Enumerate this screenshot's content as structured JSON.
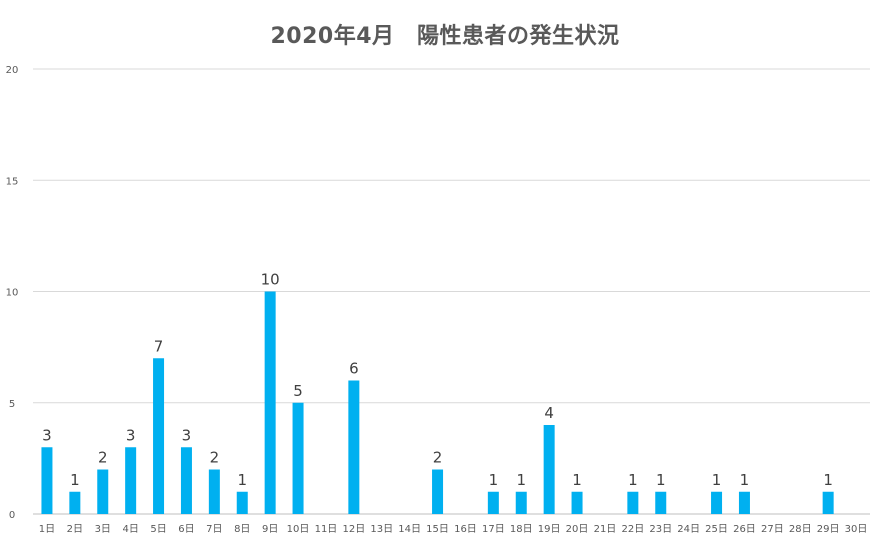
{
  "chart_data": {
    "type": "bar",
    "title": "2020年4月　陽性患者の発生状況",
    "xlabel": "",
    "ylabel": "",
    "ylim": [
      0,
      20
    ],
    "yticks": [
      0,
      5,
      10,
      15,
      20
    ],
    "grid": true,
    "legend": "none",
    "bar_color": "#00b0f0",
    "categories": [
      "1日",
      "2日",
      "3日",
      "4日",
      "5日",
      "6日",
      "7日",
      "8日",
      "9日",
      "10日",
      "11日",
      "12日",
      "13日",
      "14日",
      "15日",
      "16日",
      "17日",
      "18日",
      "19日",
      "20日",
      "21日",
      "22日",
      "23日",
      "24日",
      "25日",
      "26日",
      "27日",
      "28日",
      "29日",
      "30日"
    ],
    "values": [
      3,
      1,
      2,
      3,
      7,
      3,
      2,
      1,
      10,
      5,
      0,
      6,
      0,
      0,
      2,
      0,
      1,
      1,
      4,
      1,
      0,
      1,
      1,
      0,
      1,
      1,
      0,
      0,
      1,
      0
    ],
    "data_labels": [
      "3",
      "1",
      "2",
      "3",
      "7",
      "3",
      "2",
      "1",
      "10",
      "5",
      "",
      "6",
      "",
      "",
      "2",
      "",
      "1",
      "1",
      "4",
      "1",
      "",
      "1",
      "1",
      "",
      "1",
      "1",
      "",
      "",
      "1",
      ""
    ]
  }
}
